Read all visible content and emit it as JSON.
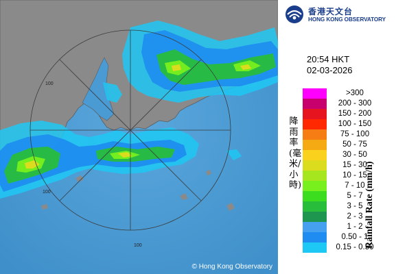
{
  "header": {
    "org_name_zh": "香港天文台",
    "org_name_en": "HONG KONG OBSERVATORY"
  },
  "timestamp": {
    "time": "20:54 HKT",
    "date": "02-03-2026"
  },
  "legend": {
    "title_zh": "降雨率(毫米/小時)",
    "title_en": "Rainfall Rate (mm/h)",
    "items": [
      {
        "range": ">300",
        "color": "#ff00ff"
      },
      {
        "range": "200 - 300",
        "color": "#c8006e"
      },
      {
        "range": "150 - 200",
        "color": "#e6141e"
      },
      {
        "range": "100 - 150",
        "color": "#ff2800"
      },
      {
        "range": "75 - 100",
        "color": "#f57d14"
      },
      {
        "range": "50 - 75",
        "color": "#f5aa14"
      },
      {
        "range": "30 - 50",
        "color": "#fad21e"
      },
      {
        "range": "15 - 30",
        "color": "#dcdc1e"
      },
      {
        "range": "10 - 15",
        "color": "#a5e61e"
      },
      {
        "range": "7 - 10",
        "color": "#78f01e"
      },
      {
        "range": "5 - 7",
        "color": "#3cdc1e"
      },
      {
        "range": "3 - 5",
        "color": "#28be3c"
      },
      {
        "range": "2 - 3",
        "color": "#1e9650"
      },
      {
        "range": "1 - 2",
        "color": "#46a0f0"
      },
      {
        "range": "0.50 - 1",
        "color": "#1e8cf0"
      },
      {
        "range": "0.15 - 0.50",
        "color": "#1ec8f5"
      }
    ]
  },
  "map": {
    "range_labels": [
      "100",
      "100",
      "100"
    ],
    "sea_color": "#4a9ad4",
    "land_color": "#8c8c8c"
  },
  "footer": {
    "copyright": "© Hong Kong Observatory"
  }
}
